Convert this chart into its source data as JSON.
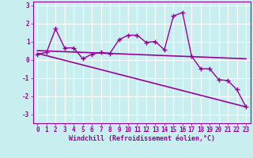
{
  "title": "",
  "xlabel": "Windchill (Refroidissement éolien,°C)",
  "bg_color": "#c8eef0",
  "line_color": "#990099",
  "grid_color": "#ffffff",
  "xlim": [
    -0.5,
    23.5
  ],
  "ylim": [
    -3.5,
    3.2
  ],
  "xticks": [
    0,
    1,
    2,
    3,
    4,
    5,
    6,
    7,
    8,
    9,
    10,
    11,
    12,
    13,
    14,
    15,
    16,
    17,
    18,
    19,
    20,
    21,
    22,
    23
  ],
  "yticks": [
    -3,
    -2,
    -1,
    0,
    1,
    2,
    3
  ],
  "data_x": [
    0,
    1,
    2,
    3,
    4,
    5,
    6,
    7,
    8,
    9,
    10,
    11,
    12,
    13,
    14,
    15,
    16,
    17,
    18,
    19,
    20,
    21,
    22,
    23
  ],
  "data_y": [
    0.3,
    0.4,
    1.7,
    0.65,
    0.65,
    0.05,
    0.3,
    0.4,
    0.35,
    1.1,
    1.35,
    1.35,
    0.95,
    1.0,
    0.55,
    2.4,
    2.6,
    0.2,
    -0.5,
    -0.5,
    -1.1,
    -1.15,
    -1.65,
    -2.6
  ],
  "trend1_x": [
    0,
    23
  ],
  "trend1_y": [
    0.35,
    -2.6
  ],
  "trend2_x": [
    0,
    23
  ],
  "trend2_y": [
    0.5,
    0.05
  ]
}
